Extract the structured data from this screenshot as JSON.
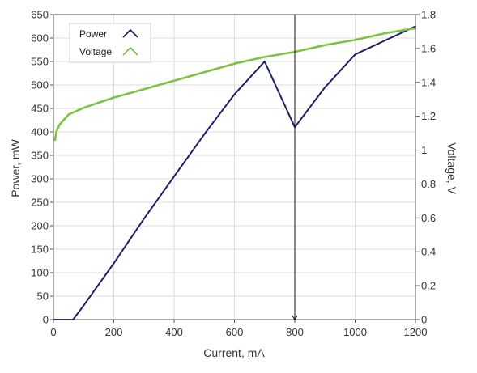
{
  "chart_data": {
    "type": "line",
    "xlabel": "Current, mA",
    "ylabel_left": "Power, mW",
    "ylabel_right": "Voltage, V",
    "xlim": [
      0,
      1200
    ],
    "ylim_left": [
      0,
      650
    ],
    "ylim_right": [
      0,
      1.8
    ],
    "x_ticks": [
      0,
      200,
      400,
      600,
      800,
      1000,
      1200
    ],
    "y_left_ticks": [
      0,
      50,
      100,
      150,
      200,
      250,
      300,
      350,
      400,
      450,
      500,
      550,
      600,
      650
    ],
    "y_right_ticks": [
      0,
      0.2,
      0.4,
      0.6,
      0.8,
      1,
      1.2,
      1.4,
      1.6,
      1.8
    ],
    "grid": true,
    "legend_position": "top-left",
    "cursor_x": 800,
    "series": [
      {
        "name": "Power",
        "axis": "left",
        "color": "#1a1f66",
        "points": [
          [
            0,
            0
          ],
          [
            65,
            0
          ],
          [
            100,
            30
          ],
          [
            200,
            120
          ],
          [
            300,
            215
          ],
          [
            400,
            305
          ],
          [
            500,
            395
          ],
          [
            600,
            480
          ],
          [
            700,
            550
          ],
          [
            800,
            410
          ],
          [
            900,
            495
          ],
          [
            1000,
            565
          ],
          [
            1100,
            595
          ],
          [
            1200,
            625
          ]
        ]
      },
      {
        "name": "Voltage",
        "axis": "right",
        "color": "#7dc242",
        "points": [
          [
            5,
            1.06
          ],
          [
            10,
            1.11
          ],
          [
            20,
            1.15
          ],
          [
            35,
            1.18
          ],
          [
            50,
            1.21
          ],
          [
            75,
            1.23
          ],
          [
            100,
            1.25
          ],
          [
            150,
            1.28
          ],
          [
            200,
            1.31
          ],
          [
            300,
            1.36
          ],
          [
            400,
            1.41
          ],
          [
            500,
            1.46
          ],
          [
            600,
            1.51
          ],
          [
            700,
            1.55
          ],
          [
            800,
            1.58
          ],
          [
            900,
            1.62
          ],
          [
            1000,
            1.65
          ],
          [
            1100,
            1.69
          ],
          [
            1200,
            1.72
          ]
        ]
      }
    ]
  }
}
